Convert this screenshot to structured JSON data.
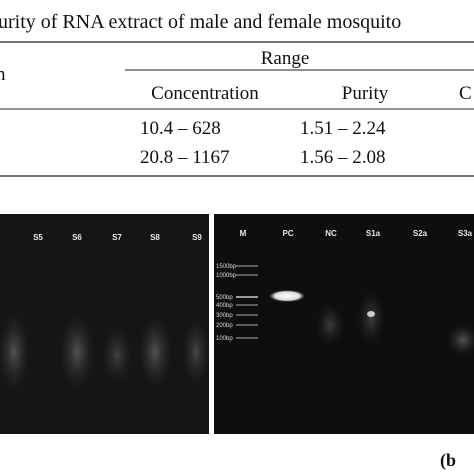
{
  "caption": "urity of RNA extract of male and female mosquito",
  "table": {
    "header": [
      "n",
      "Range"
    ],
    "subheader": [
      "Concentration",
      "Purity",
      "C"
    ],
    "rows": [
      [
        "10.4 – 628",
        "1.51 – 2.24"
      ],
      [
        "20.8 – 1167",
        "1.56 – 2.08"
      ]
    ]
  },
  "gel_left": {
    "lanes": [
      "S5",
      "S6",
      "S7",
      "S8",
      "S9"
    ]
  },
  "gel_right": {
    "lanes": [
      "M",
      "PC",
      "NC",
      "S1a",
      "S2a",
      "S3a"
    ],
    "ladder": [
      "1500bp",
      "1000bp",
      "500bp",
      "400bp",
      "300bp",
      "200bp",
      "100bp"
    ]
  },
  "panel_label": "(b"
}
